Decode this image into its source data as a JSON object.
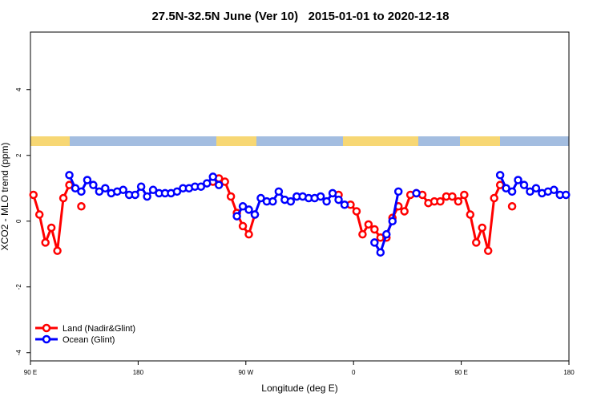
{
  "chart_data": {
    "type": "line",
    "title": "27.5N-32.5N June (Ver 10)   2015-01-01 to 2020-12-18",
    "xlabel": "Longitude (deg E)",
    "ylabel": "XCO2 - MLO trend (ppm)",
    "xlim": [
      90,
      540
    ],
    "xticks": [
      {
        "value": 90,
        "label": "90 E"
      },
      180,
      {
        "value": 270,
        "label": "90 W"
      },
      {
        "value": 360,
        "label": "0"
      },
      {
        "value": 450,
        "label": "90 E"
      },
      {
        "value": 540,
        "label": "180"
      }
    ],
    "ylim": [
      -4.25,
      5.75
    ],
    "yticks": [
      -4,
      -2,
      0,
      2,
      4
    ],
    "legend": "bottom-left",
    "series": [
      {
        "name": "Land (Nadir&Glint)",
        "color": "#ff0000",
        "x": [
          92.5,
          97.5,
          102.5,
          107.5,
          112.5,
          117.5,
          122.5,
          127.5,
          132.5,
          137.5,
          242.5,
          247.5,
          252.5,
          257.5,
          262.5,
          267.5,
          272.5,
          277.5,
          282.5,
          347.5,
          352.5,
          357.5,
          362.5,
          367.5,
          372.5,
          377.5,
          382.5,
          387.5,
          392.5,
          397.5,
          402.5,
          407.5,
          412.5,
          417.5,
          422.5,
          427.5,
          432.5,
          437.5,
          442.5,
          447.5,
          452.5,
          457.5,
          462.5,
          467.5,
          472.5,
          477.5,
          482.5,
          487.5,
          492.5
        ],
        "values": [
          0.8,
          0.2,
          -0.65,
          -0.2,
          -0.9,
          0.7,
          1.1,
          null,
          0.45,
          null,
          1.2,
          1.3,
          1.2,
          0.75,
          0.25,
          -0.15,
          -0.4,
          0.2,
          null,
          0.8,
          null,
          0.5,
          0.3,
          -0.4,
          -0.1,
          -0.25,
          -0.5,
          -0.5,
          0.1,
          0.45,
          0.3,
          0.8,
          0.85,
          0.8,
          0.55,
          0.6,
          0.6,
          0.75,
          0.75,
          0.6,
          0.8,
          0.2,
          -0.65,
          -0.2,
          -0.9,
          0.7,
          1.1,
          null,
          0.45
        ]
      },
      {
        "name": "Ocean (Glint)",
        "color": "#0000ff",
        "x": [
          122.5,
          127.5,
          132.5,
          137.5,
          142.5,
          147.5,
          152.5,
          157.5,
          162.5,
          167.5,
          172.5,
          177.5,
          182.5,
          187.5,
          192.5,
          197.5,
          202.5,
          207.5,
          212.5,
          217.5,
          222.5,
          227.5,
          232.5,
          237.5,
          242.5,
          247.5,
          252.5,
          262.5,
          267.5,
          272.5,
          277.5,
          282.5,
          287.5,
          292.5,
          297.5,
          302.5,
          307.5,
          312.5,
          317.5,
          322.5,
          327.5,
          332.5,
          337.5,
          342.5,
          347.5,
          352.5,
          357.5,
          377.5,
          382.5,
          387.5,
          392.5,
          397.5,
          402.5,
          412.5,
          417.5,
          482.5,
          487.5,
          492.5,
          497.5,
          502.5,
          507.5,
          512.5,
          517.5,
          522.5,
          527.5,
          532.5,
          537.5
        ],
        "values": [
          1.4,
          1.0,
          0.9,
          1.25,
          1.1,
          0.9,
          1.0,
          0.85,
          0.9,
          0.95,
          0.8,
          0.8,
          1.05,
          0.75,
          0.95,
          0.85,
          0.85,
          0.85,
          0.9,
          1.0,
          1.0,
          1.05,
          1.05,
          1.15,
          1.35,
          1.1,
          null,
          0.15,
          0.45,
          0.35,
          0.2,
          0.7,
          0.6,
          0.6,
          0.9,
          0.65,
          0.6,
          0.75,
          0.75,
          0.7,
          0.7,
          0.75,
          0.6,
          0.85,
          0.65,
          0.5,
          null,
          -0.65,
          -0.95,
          -0.4,
          0,
          0.9,
          null,
          0.85,
          null,
          1.4,
          1.0,
          0.9,
          1.25,
          1.1,
          0.9,
          1.0,
          0.85,
          0.9,
          0.95,
          0.8,
          0.8
        ]
      }
    ]
  }
}
